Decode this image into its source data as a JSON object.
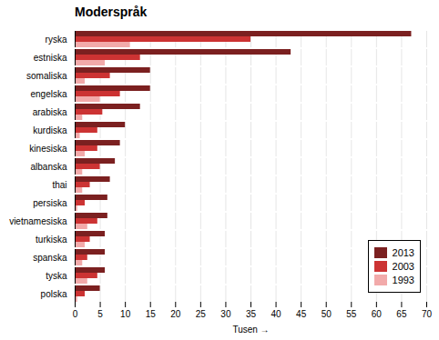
{
  "chart_data": {
    "type": "bar",
    "orientation": "horizontal",
    "title": "Moderspråk",
    "xlabel": "Tusen",
    "categories": [
      "polska",
      "tyska",
      "spanska",
      "turkiska",
      "vietnamesiska",
      "persiska",
      "thai",
      "albanska",
      "kinesiska",
      "kurdiska",
      "arabiska",
      "engelska",
      "somaliska",
      "estniska",
      "ryska"
    ],
    "series": [
      {
        "name": "2013",
        "color": "#7b2020",
        "values": [
          5,
          6,
          6,
          6,
          6.5,
          6.5,
          7,
          8,
          9,
          10,
          13,
          15,
          15,
          43,
          67
        ]
      },
      {
        "name": "2003",
        "color": "#cc3333",
        "values": [
          2,
          4.5,
          2.5,
          3,
          4.5,
          2,
          3,
          5,
          4.5,
          4.5,
          5.5,
          9,
          7,
          13,
          35
        ]
      },
      {
        "name": "1993",
        "color": "#f2aaaa",
        "values": [
          0.5,
          2.5,
          1.5,
          2,
          2.5,
          0.5,
          1.5,
          1.5,
          2,
          1,
          1.5,
          5,
          2,
          6,
          11
        ]
      }
    ],
    "xlim": [
      0,
      70
    ],
    "xticks": [
      0,
      5,
      10,
      15,
      20,
      25,
      30,
      35,
      40,
      45,
      50,
      55,
      60,
      65,
      70
    ],
    "grid": true,
    "legend": "lower right"
  }
}
